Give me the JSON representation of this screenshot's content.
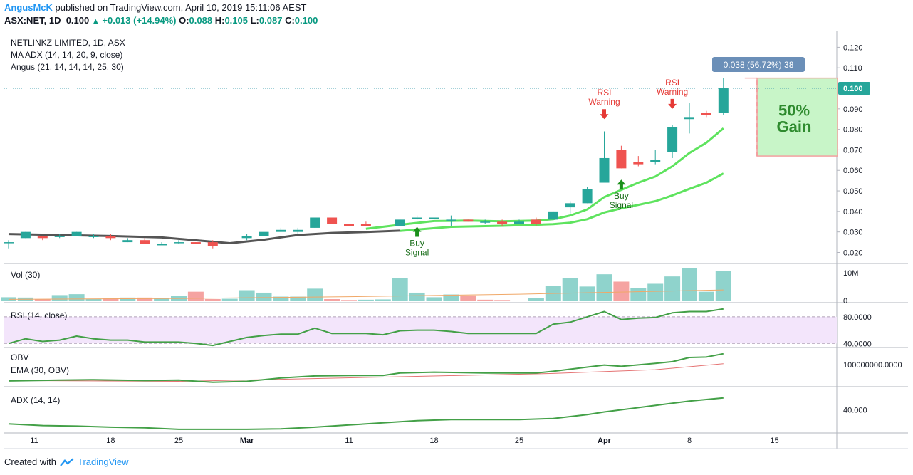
{
  "header": {
    "author": "AngusMcK",
    "published": " published on TradingView.com, April 10, 2019 15:11:06 AEST",
    "symbol": "ASX:NET, 1D",
    "last": "0.100",
    "change": "+0.013 (+14.94%)",
    "o_label": "O:",
    "o": "0.088",
    "h_label": "H:",
    "h": "0.105",
    "l_label": "L:",
    "l": "0.087",
    "c_label": "C:",
    "c": "0.100"
  },
  "footer": {
    "created_with": "Created with",
    "brand": "TradingView"
  },
  "colors": {
    "up": "#26a69a",
    "down": "#ef5350",
    "ma": "#5ee35e",
    "dark_ma": "#555555",
    "rsi": "#43a047",
    "price_line": "#4aa3b0",
    "gain_box": "#c8f5c8",
    "gain_text": "#2e8b2e",
    "label_bg": "#6b8fb8"
  },
  "chart_data": [
    {
      "type": "candlestick",
      "legend": [
        "NETLINKZ LIMITED, 1D, ASX",
        "MA ADX (14, 14, 20, 9, close)",
        "Angus (21, 14, 14, 14, 25, 30)"
      ],
      "ylim": [
        0.016,
        0.125
      ],
      "yticks": [
        "0.020",
        "0.030",
        "0.040",
        "0.050",
        "0.060",
        "0.070",
        "0.080",
        "0.090",
        "0.110",
        "0.120"
      ],
      "last_price_label": "0.100",
      "last_price": 0.1,
      "measure_label": "0.038 (56.72%) 38",
      "gain_text": [
        "50%",
        "Gain"
      ],
      "gain_box": {
        "from_price": 0.067,
        "to_price": 0.105
      },
      "candles": [
        {
          "i": 0,
          "o": 0.025,
          "h": 0.026,
          "l": 0.022,
          "c": 0.025
        },
        {
          "i": 1,
          "o": 0.027,
          "h": 0.03,
          "l": 0.027,
          "c": 0.03
        },
        {
          "i": 2,
          "o": 0.028,
          "h": 0.028,
          "l": 0.026,
          "c": 0.027
        },
        {
          "i": 3,
          "o": 0.028,
          "h": 0.029,
          "l": 0.027,
          "c": 0.028
        },
        {
          "i": 4,
          "o": 0.028,
          "h": 0.03,
          "l": 0.028,
          "c": 0.03
        },
        {
          "i": 5,
          "o": 0.028,
          "h": 0.029,
          "l": 0.027,
          "c": 0.028
        },
        {
          "i": 6,
          "o": 0.028,
          "h": 0.029,
          "l": 0.026,
          "c": 0.027
        },
        {
          "i": 7,
          "o": 0.025,
          "h": 0.027,
          "l": 0.025,
          "c": 0.026
        },
        {
          "i": 8,
          "o": 0.026,
          "h": 0.027,
          "l": 0.024,
          "c": 0.024
        },
        {
          "i": 9,
          "o": 0.024,
          "h": 0.025,
          "l": 0.024,
          "c": 0.024
        },
        {
          "i": 10,
          "o": 0.025,
          "h": 0.026,
          "l": 0.024,
          "c": 0.025
        },
        {
          "i": 11,
          "o": 0.025,
          "h": 0.025,
          "l": 0.024,
          "c": 0.024
        },
        {
          "i": 12,
          "o": 0.025,
          "h": 0.026,
          "l": 0.022,
          "c": 0.023
        },
        {
          "i": 14,
          "o": 0.027,
          "h": 0.029,
          "l": 0.026,
          "c": 0.028
        },
        {
          "i": 15,
          "o": 0.028,
          "h": 0.031,
          "l": 0.028,
          "c": 0.03
        },
        {
          "i": 16,
          "o": 0.03,
          "h": 0.032,
          "l": 0.03,
          "c": 0.031
        },
        {
          "i": 17,
          "o": 0.03,
          "h": 0.032,
          "l": 0.029,
          "c": 0.031
        },
        {
          "i": 18,
          "o": 0.032,
          "h": 0.037,
          "l": 0.032,
          "c": 0.037
        },
        {
          "i": 19,
          "o": 0.037,
          "h": 0.037,
          "l": 0.034,
          "c": 0.034
        },
        {
          "i": 20,
          "o": 0.034,
          "h": 0.034,
          "l": 0.033,
          "c": 0.033
        },
        {
          "i": 21,
          "o": 0.034,
          "h": 0.035,
          "l": 0.033,
          "c": 0.033
        },
        {
          "i": 23,
          "o": 0.033,
          "h": 0.036,
          "l": 0.033,
          "c": 0.036
        },
        {
          "i": 24,
          "o": 0.037,
          "h": 0.038,
          "l": 0.036,
          "c": 0.037
        },
        {
          "i": 25,
          "o": 0.037,
          "h": 0.038,
          "l": 0.036,
          "c": 0.037
        },
        {
          "i": 26,
          "o": 0.036,
          "h": 0.038,
          "l": 0.033,
          "c": 0.036
        },
        {
          "i": 27,
          "o": 0.036,
          "h": 0.036,
          "l": 0.035,
          "c": 0.035
        },
        {
          "i": 28,
          "o": 0.035,
          "h": 0.036,
          "l": 0.034,
          "c": 0.035
        },
        {
          "i": 29,
          "o": 0.035,
          "h": 0.036,
          "l": 0.033,
          "c": 0.034
        },
        {
          "i": 30,
          "o": 0.034,
          "h": 0.036,
          "l": 0.034,
          "c": 0.035
        },
        {
          "i": 31,
          "o": 0.036,
          "h": 0.037,
          "l": 0.033,
          "c": 0.034
        },
        {
          "i": 32,
          "o": 0.036,
          "h": 0.04,
          "l": 0.036,
          "c": 0.04
        },
        {
          "i": 33,
          "o": 0.042,
          "h": 0.045,
          "l": 0.039,
          "c": 0.044
        },
        {
          "i": 34,
          "o": 0.044,
          "h": 0.052,
          "l": 0.044,
          "c": 0.051
        },
        {
          "i": 35,
          "o": 0.054,
          "h": 0.079,
          "l": 0.054,
          "c": 0.066
        },
        {
          "i": 36,
          "o": 0.07,
          "h": 0.072,
          "l": 0.061,
          "c": 0.061
        },
        {
          "i": 37,
          "o": 0.064,
          "h": 0.067,
          "l": 0.062,
          "c": 0.063
        },
        {
          "i": 38,
          "o": 0.064,
          "h": 0.07,
          "l": 0.063,
          "c": 0.065
        },
        {
          "i": 39,
          "o": 0.069,
          "h": 0.082,
          "l": 0.066,
          "c": 0.081
        },
        {
          "i": 40,
          "o": 0.085,
          "h": 0.093,
          "l": 0.078,
          "c": 0.086
        },
        {
          "i": 41,
          "o": 0.088,
          "h": 0.089,
          "l": 0.086,
          "c": 0.087
        },
        {
          "i": 42,
          "o": 0.088,
          "h": 0.105,
          "l": 0.087,
          "c": 0.1
        }
      ],
      "ma_fast": [
        [
          21,
          0.0315
        ],
        [
          23,
          0.0335
        ],
        [
          25,
          0.0353
        ],
        [
          27,
          0.0355
        ],
        [
          29,
          0.0352
        ],
        [
          31,
          0.0355
        ],
        [
          32,
          0.0362
        ],
        [
          33,
          0.038
        ],
        [
          34,
          0.041
        ],
        [
          35,
          0.047
        ],
        [
          36,
          0.0505
        ],
        [
          37,
          0.054
        ],
        [
          38,
          0.057
        ],
        [
          39,
          0.062
        ],
        [
          40,
          0.0685
        ],
        [
          41,
          0.0735
        ],
        [
          42,
          0.0805
        ]
      ],
      "ma_slow": [
        [
          23,
          0.0305
        ],
        [
          26,
          0.0325
        ],
        [
          29,
          0.033
        ],
        [
          31,
          0.0335
        ],
        [
          32,
          0.0338
        ],
        [
          33,
          0.0345
        ],
        [
          34,
          0.0362
        ],
        [
          35,
          0.0395
        ],
        [
          36,
          0.0415
        ],
        [
          37,
          0.0432
        ],
        [
          38,
          0.045
        ],
        [
          39,
          0.0478
        ],
        [
          40,
          0.051
        ],
        [
          41,
          0.054
        ],
        [
          42,
          0.0585
        ]
      ],
      "ma_dark": [
        [
          0,
          0.029
        ],
        [
          3,
          0.0285
        ],
        [
          6,
          0.028
        ],
        [
          9,
          0.0273
        ],
        [
          13,
          0.0245
        ],
        [
          15,
          0.0262
        ],
        [
          17,
          0.0285
        ],
        [
          19,
          0.0295
        ],
        [
          21,
          0.03
        ],
        [
          23,
          0.0306
        ]
      ],
      "annotations": [
        {
          "text": [
            "Buy",
            "Signal"
          ],
          "index": 24,
          "price": 0.0325,
          "arrow": "up",
          "color": "#1b8f1b"
        },
        {
          "text": [
            "Buy",
            "Signal"
          ],
          "index": 36,
          "price": 0.0555,
          "arrow": "up",
          "color": "#1b8f1b"
        },
        {
          "text": [
            "RSI",
            "Warning"
          ],
          "index": 35,
          "price": 0.085,
          "arrow": "down",
          "color": "#e53935"
        },
        {
          "text": [
            "RSI",
            "Warning"
          ],
          "index": 39,
          "price": 0.09,
          "arrow": "down",
          "color": "#e53935"
        }
      ]
    },
    {
      "type": "bar",
      "title": "Vol (30)",
      "yticks": [
        "10M",
        "0"
      ],
      "ylim": [
        0,
        10000000
      ],
      "values": [
        {
          "i": 0,
          "v": 1300000,
          "up": true
        },
        {
          "i": 1,
          "v": 1200000,
          "up": true
        },
        {
          "i": 2,
          "v": 600000,
          "up": false
        },
        {
          "i": 3,
          "v": 2000000,
          "up": true
        },
        {
          "i": 4,
          "v": 2300000,
          "up": true
        },
        {
          "i": 5,
          "v": 800000,
          "up": true
        },
        {
          "i": 6,
          "v": 900000,
          "up": false
        },
        {
          "i": 7,
          "v": 1200000,
          "up": true
        },
        {
          "i": 8,
          "v": 1200000,
          "up": false
        },
        {
          "i": 9,
          "v": 1000000,
          "up": true
        },
        {
          "i": 10,
          "v": 1700000,
          "up": true
        },
        {
          "i": 11,
          "v": 3100000,
          "up": false
        },
        {
          "i": 12,
          "v": 700000,
          "up": false
        },
        {
          "i": 13,
          "v": 800000,
          "up": true
        },
        {
          "i": 14,
          "v": 3600000,
          "up": true
        },
        {
          "i": 15,
          "v": 2800000,
          "up": true
        },
        {
          "i": 16,
          "v": 1500000,
          "up": true
        },
        {
          "i": 17,
          "v": 1500000,
          "up": true
        },
        {
          "i": 18,
          "v": 4100000,
          "up": true
        },
        {
          "i": 19,
          "v": 700000,
          "up": false
        },
        {
          "i": 20,
          "v": 400000,
          "up": false
        },
        {
          "i": 21,
          "v": 500000,
          "up": true
        },
        {
          "i": 22,
          "v": 600000,
          "up": true
        },
        {
          "i": 23,
          "v": 7500000,
          "up": true
        },
        {
          "i": 24,
          "v": 2800000,
          "up": true
        },
        {
          "i": 25,
          "v": 1300000,
          "up": true
        },
        {
          "i": 26,
          "v": 2200000,
          "up": true
        },
        {
          "i": 27,
          "v": 1900000,
          "up": false
        },
        {
          "i": 28,
          "v": 500000,
          "up": false
        },
        {
          "i": 29,
          "v": 400000,
          "up": false
        },
        {
          "i": 31,
          "v": 1100000,
          "up": true
        },
        {
          "i": 32,
          "v": 4900000,
          "up": true
        },
        {
          "i": 33,
          "v": 7600000,
          "up": true
        },
        {
          "i": 34,
          "v": 4800000,
          "up": true
        },
        {
          "i": 35,
          "v": 8800000,
          "up": true
        },
        {
          "i": 36,
          "v": 6400000,
          "up": false
        },
        {
          "i": 37,
          "v": 4200000,
          "up": true
        },
        {
          "i": 38,
          "v": 5700000,
          "up": true
        },
        {
          "i": 39,
          "v": 8100000,
          "up": true
        },
        {
          "i": 40,
          "v": 11500000,
          "up": true
        },
        {
          "i": 41,
          "v": 3100000,
          "up": true
        },
        {
          "i": 42,
          "v": 9800000,
          "up": true
        }
      ],
      "ma": [
        [
          0,
          600000
        ],
        [
          10,
          900000
        ],
        [
          20,
          1500000
        ],
        [
          30,
          2300000
        ],
        [
          42,
          3700000
        ]
      ]
    },
    {
      "type": "line",
      "title": "RSI (14, close)",
      "yticks": [
        "80.0000",
        "40.0000"
      ],
      "ylim": [
        36,
        96
      ],
      "band": [
        40,
        80
      ],
      "points": [
        [
          0,
          40
        ],
        [
          1,
          47
        ],
        [
          2,
          43
        ],
        [
          3,
          45
        ],
        [
          4,
          51
        ],
        [
          5,
          47
        ],
        [
          6,
          45
        ],
        [
          7,
          45
        ],
        [
          8,
          42
        ],
        [
          9,
          42
        ],
        [
          10,
          42
        ],
        [
          11,
          40
        ],
        [
          12,
          37
        ],
        [
          13,
          43
        ],
        [
          14,
          49
        ],
        [
          15,
          52
        ],
        [
          16,
          54
        ],
        [
          17,
          54
        ],
        [
          18,
          63
        ],
        [
          19,
          55
        ],
        [
          20,
          55
        ],
        [
          21,
          55
        ],
        [
          22,
          53
        ],
        [
          23,
          59
        ],
        [
          24,
          60
        ],
        [
          25,
          60
        ],
        [
          26,
          58
        ],
        [
          27,
          55
        ],
        [
          28,
          55
        ],
        [
          29,
          55
        ],
        [
          30,
          55
        ],
        [
          31,
          55
        ],
        [
          32,
          69
        ],
        [
          33,
          72
        ],
        [
          34,
          80
        ],
        [
          35,
          88
        ],
        [
          36,
          76
        ],
        [
          37,
          78
        ],
        [
          38,
          79
        ],
        [
          39,
          86
        ],
        [
          40,
          88
        ],
        [
          41,
          88
        ],
        [
          42,
          92
        ]
      ]
    },
    {
      "type": "line",
      "title": "OBV",
      "subtitle": "EMA (30, OBV)",
      "yticks": [
        "100000000.0000"
      ],
      "points": [
        [
          0,
          52
        ],
        [
          3,
          54
        ],
        [
          5,
          55
        ],
        [
          8,
          53
        ],
        [
          10,
          54
        ],
        [
          12,
          49
        ],
        [
          14,
          51
        ],
        [
          16,
          59
        ],
        [
          18,
          64
        ],
        [
          20,
          65
        ],
        [
          22,
          65
        ],
        [
          23,
          71
        ],
        [
          25,
          73
        ],
        [
          28,
          71
        ],
        [
          31,
          71
        ],
        [
          32,
          75
        ],
        [
          34,
          85
        ],
        [
          35,
          90
        ],
        [
          36,
          87
        ],
        [
          38,
          94
        ],
        [
          39,
          98
        ],
        [
          40,
          108
        ],
        [
          41,
          109
        ],
        [
          42,
          117
        ]
      ],
      "ema": [
        [
          0,
          53
        ],
        [
          10,
          51
        ],
        [
          16,
          56
        ],
        [
          24,
          63
        ],
        [
          32,
          70
        ],
        [
          38,
          79
        ],
        [
          42,
          93
        ]
      ],
      "ylim": [
        40,
        125
      ]
    },
    {
      "type": "line",
      "title": "ADX (14, 14)",
      "yticks": [
        "40.000"
      ],
      "ylim": [
        20,
        58
      ],
      "points": [
        [
          0,
          27
        ],
        [
          2,
          25.5
        ],
        [
          4,
          25
        ],
        [
          6,
          24
        ],
        [
          8,
          23.5
        ],
        [
          10,
          22
        ],
        [
          12,
          22
        ],
        [
          14,
          22
        ],
        [
          16,
          22.5
        ],
        [
          18,
          24
        ],
        [
          20,
          26
        ],
        [
          22,
          28
        ],
        [
          24,
          30
        ],
        [
          26,
          31
        ],
        [
          28,
          31
        ],
        [
          30,
          31
        ],
        [
          32,
          32
        ],
        [
          34,
          35.5
        ],
        [
          35,
          38
        ],
        [
          37,
          42
        ],
        [
          39,
          46
        ],
        [
          40,
          48
        ],
        [
          42,
          51
        ]
      ]
    }
  ],
  "x_axis": {
    "labels": [
      {
        "i": 1,
        "text": "11"
      },
      {
        "i": 6,
        "text": "18"
      },
      {
        "i": 10,
        "text": "25"
      },
      {
        "i": 14,
        "text": "Mar"
      },
      {
        "i": 20,
        "text": "11"
      },
      {
        "i": 25,
        "text": "18"
      },
      {
        "i": 30,
        "text": "25"
      },
      {
        "i": 35,
        "text": "Apr"
      },
      {
        "i": 40,
        "text": "8"
      },
      {
        "i": 45,
        "text": "15"
      }
    ]
  }
}
